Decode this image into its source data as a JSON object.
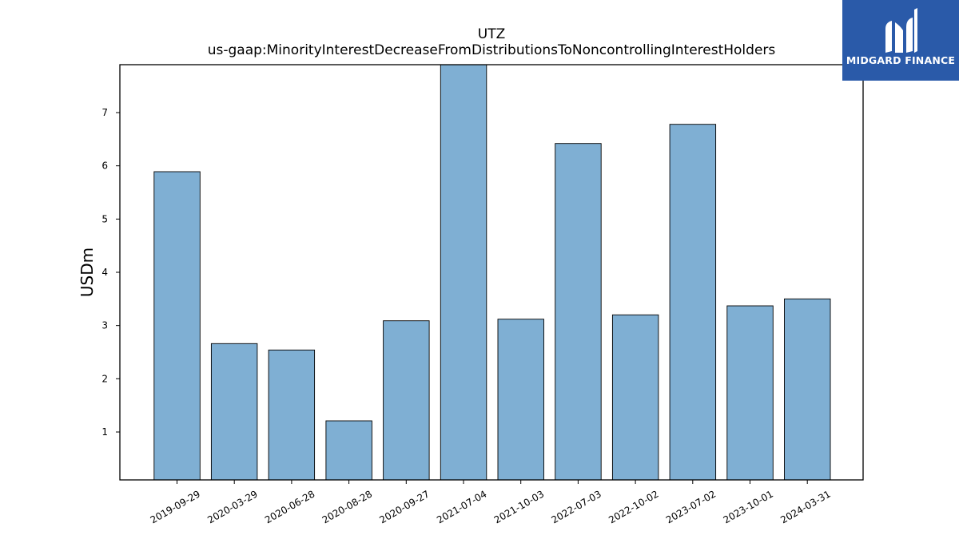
{
  "chart_data": {
    "type": "bar",
    "title": "UTZ",
    "subtitle": "us-gaap:MinorityInterestDecreaseFromDistributionsToNoncontrollingInterestHolders",
    "xlabel": "",
    "ylabel": "USDm",
    "ylim": [
      0.1,
      7.9
    ],
    "yticks": [
      1,
      2,
      3,
      4,
      5,
      6,
      7
    ],
    "grid": false,
    "bar_color": "#7fafd3",
    "bar_edge_color": "#000000",
    "categories": [
      "2019-09-29",
      "2020-03-29",
      "2020-06-28",
      "2020-08-28",
      "2020-09-27",
      "2021-07-04",
      "2021-10-03",
      "2022-07-03",
      "2022-10-02",
      "2023-07-02",
      "2023-10-01",
      "2024-03-31"
    ],
    "values": [
      5.89,
      2.66,
      2.54,
      1.21,
      3.09,
      7.9,
      3.12,
      6.42,
      3.2,
      6.78,
      3.37,
      3.5
    ]
  },
  "logo": {
    "text": "MIDGARD FINANCE",
    "color": "#2a5aa9"
  }
}
